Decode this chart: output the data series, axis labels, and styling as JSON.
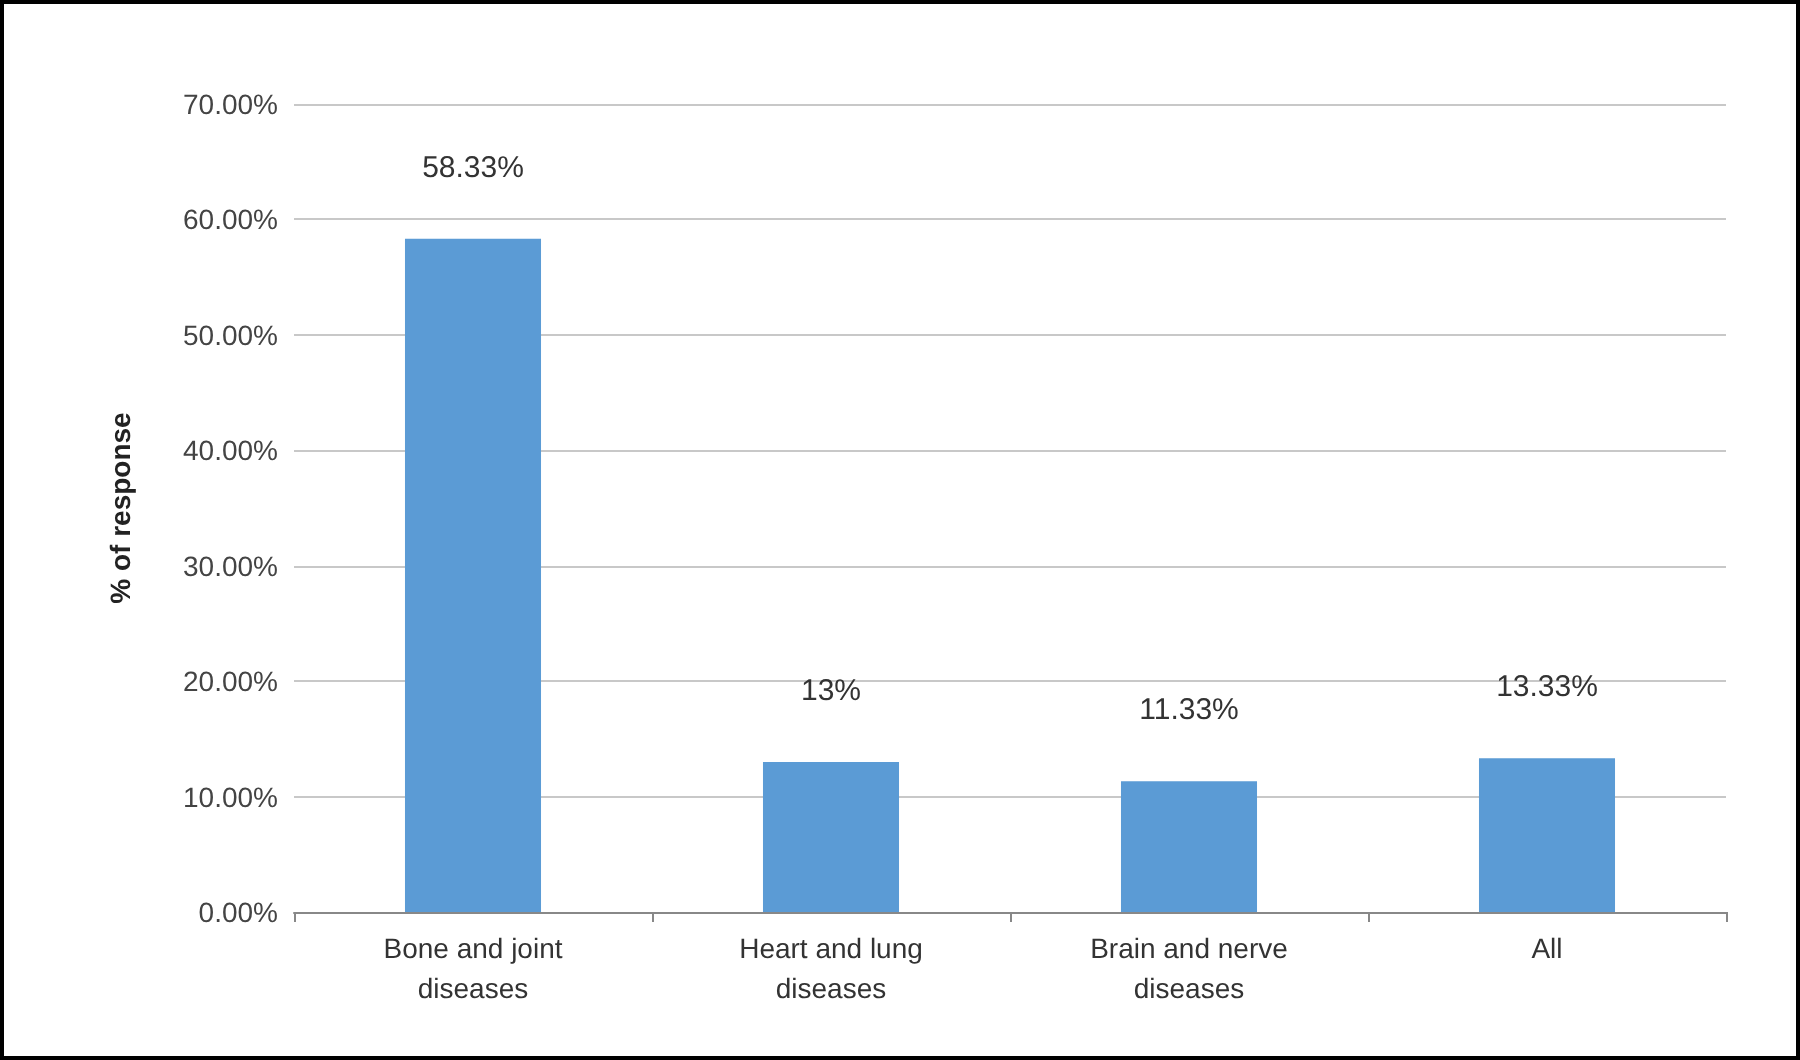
{
  "chart_data": {
    "type": "bar",
    "ylabel": "% of response",
    "categories": [
      "Bone and joint\ndiseases",
      "Heart and lung\ndiseases",
      "Brain and nerve\ndiseases",
      "All"
    ],
    "values": [
      58.33,
      13,
      11.33,
      13.33
    ],
    "value_labels": [
      "58.33%",
      "13%",
      "11.33%",
      "13.33%"
    ],
    "color": "#5b9bd5",
    "ylim": [
      0,
      70
    ],
    "yticks": [
      {
        "value": 0,
        "label": "0.00%"
      },
      {
        "value": 10,
        "label": "10.00%"
      },
      {
        "value": 20,
        "label": "20.00%"
      },
      {
        "value": 30,
        "label": "30.00%"
      },
      {
        "value": 40,
        "label": "40.00%"
      },
      {
        "value": 50,
        "label": "50.00%"
      },
      {
        "value": 60,
        "label": "60.00%"
      },
      {
        "value": 70,
        "label": "70.00%"
      }
    ],
    "grid": "y"
  }
}
